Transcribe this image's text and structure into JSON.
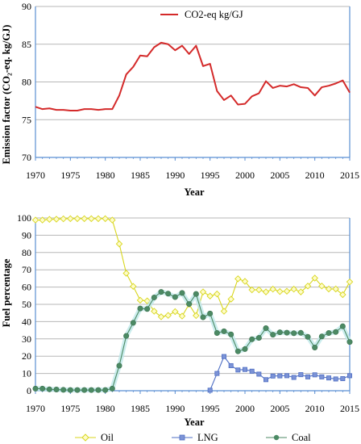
{
  "chart_data": [
    {
      "type": "line",
      "title": "",
      "xlabel": "Year",
      "ylabel": "Emission factor (CO₂-eq. kg/GJ)",
      "xlim": [
        1970,
        2015
      ],
      "ylim": [
        70,
        90
      ],
      "xticks": [
        "1970",
        "1975",
        "1980",
        "1985",
        "1990",
        "1995",
        "2000",
        "2005",
        "2010",
        "2015"
      ],
      "yticks": [
        "70",
        "75",
        "80",
        "85",
        "90"
      ],
      "legend_position": "top-center",
      "grid": true,
      "x": [
        1970,
        1971,
        1972,
        1973,
        1974,
        1975,
        1976,
        1977,
        1978,
        1979,
        1980,
        1981,
        1982,
        1983,
        1984,
        1985,
        1986,
        1987,
        1988,
        1989,
        1990,
        1991,
        1992,
        1993,
        1994,
        1995,
        1996,
        1997,
        1998,
        1999,
        2000,
        2001,
        2002,
        2003,
        2004,
        2005,
        2006,
        2007,
        2008,
        2009,
        2010,
        2011,
        2012,
        2013,
        2014,
        2015
      ],
      "series": [
        {
          "name": "CO2-eq kg/GJ",
          "color": "#d42a2a",
          "values": [
            76.7,
            76.4,
            76.5,
            76.3,
            76.3,
            76.2,
            76.2,
            76.4,
            76.4,
            76.3,
            76.4,
            76.4,
            78.2,
            81.0,
            82.0,
            83.5,
            83.4,
            84.6,
            85.2,
            85.0,
            84.2,
            84.8,
            83.7,
            84.8,
            82.1,
            82.4,
            78.8,
            77.6,
            78.2,
            77.0,
            77.1,
            78.1,
            78.5,
            80.1,
            79.2,
            79.5,
            79.4,
            79.7,
            79.3,
            79.2,
            78.2,
            79.3,
            79.5,
            79.8,
            80.2,
            78.6
          ]
        }
      ]
    },
    {
      "type": "line",
      "title": "",
      "xlabel": "Year",
      "ylabel": "Fuel percentage",
      "xlim": [
        1970,
        2015
      ],
      "ylim": [
        0,
        100
      ],
      "xticks": [
        "1970",
        "1975",
        "1980",
        "1985",
        "1990",
        "1995",
        "2000",
        "2005",
        "2010",
        "2015"
      ],
      "yticks": [
        "0",
        "10",
        "20",
        "30",
        "40",
        "50",
        "60",
        "70",
        "80",
        "90",
        "100"
      ],
      "legend_position": "bottom",
      "grid": true,
      "x": [
        1970,
        1971,
        1972,
        1973,
        1974,
        1975,
        1976,
        1977,
        1978,
        1979,
        1980,
        1981,
        1982,
        1983,
        1984,
        1985,
        1986,
        1987,
        1988,
        1989,
        1990,
        1991,
        1992,
        1993,
        1994,
        1995,
        1996,
        1997,
        1998,
        1999,
        2000,
        2001,
        2002,
        2003,
        2004,
        2005,
        2006,
        2007,
        2008,
        2009,
        2010,
        2011,
        2012,
        2013,
        2014,
        2015
      ],
      "series": [
        {
          "name": "Oil",
          "color": "#d8d61e",
          "marker": "diamond",
          "values": [
            98.8,
            98.8,
            99.2,
            99.3,
            99.5,
            99.6,
            99.6,
            99.6,
            99.6,
            99.6,
            99.6,
            98.8,
            85.0,
            68.0,
            60.4,
            52.4,
            52.0,
            46.0,
            42.8,
            43.6,
            45.8,
            43.2,
            50.0,
            43.5,
            57.2,
            54.8,
            56.0,
            46.0,
            53.0,
            64.8,
            63.3,
            58.4,
            58.4,
            57.2,
            58.8,
            57.4,
            57.6,
            58.8,
            57.2,
            60.6,
            65.2,
            60.6,
            58.9,
            58.9,
            55.6,
            63.0
          ]
        },
        {
          "name": "LNG",
          "color": "#4f6fc4",
          "marker": "square",
          "start_year": 1995,
          "values": [
            null,
            null,
            null,
            null,
            null,
            null,
            null,
            null,
            null,
            null,
            null,
            null,
            null,
            null,
            null,
            null,
            null,
            null,
            null,
            null,
            null,
            null,
            null,
            null,
            null,
            0.3,
            10.0,
            19.8,
            14.5,
            12.0,
            12.3,
            11.3,
            9.6,
            6.4,
            8.5,
            8.6,
            8.7,
            7.7,
            9.3,
            8.0,
            9.2,
            8.0,
            7.4,
            6.8,
            7.0,
            8.7
          ]
        },
        {
          "name": "Coal",
          "color": "#4c8a64",
          "marker": "circle",
          "values": [
            1.2,
            1.2,
            0.8,
            0.7,
            0.5,
            0.4,
            0.4,
            0.4,
            0.4,
            0.4,
            0.4,
            1.2,
            14.5,
            31.7,
            39.3,
            47.6,
            47.3,
            54.0,
            57.2,
            56.2,
            54.2,
            56.6,
            50.2,
            56.0,
            42.5,
            44.7,
            33.4,
            34.4,
            32.6,
            22.8,
            24.1,
            29.8,
            30.6,
            36.2,
            32.4,
            33.8,
            33.6,
            33.3,
            33.5,
            31.2,
            25.0,
            31.4,
            33.4,
            34.0,
            37.3,
            28.2
          ]
        }
      ]
    }
  ],
  "colors": {
    "axis": "#5b8fd3",
    "grid": "#b7b7b7",
    "coal_halo": "#bfe8ea",
    "oil_fill": "#fefcc9",
    "lng_fill": "#7c93d6"
  }
}
